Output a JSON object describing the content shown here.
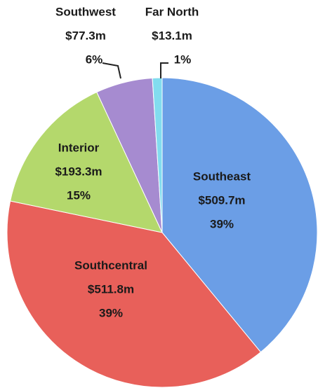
{
  "chart_data": {
    "type": "pie",
    "categories": [
      "Southeast",
      "Southcentral",
      "Interior",
      "Southwest",
      "Far North"
    ],
    "values": [
      509.7,
      511.8,
      193.3,
      77.3,
      13.1
    ],
    "value_labels": [
      "$509.7m",
      "$511.8m",
      "$193.3m",
      "$77.3m",
      "$13.1m"
    ],
    "percent_labels": [
      "39%",
      "39%",
      "15%",
      "6%",
      "1%"
    ],
    "colors": [
      "#6b9ee6",
      "#e8605a",
      "#b4d86c",
      "#a68bd0",
      "#82dcef"
    ]
  }
}
